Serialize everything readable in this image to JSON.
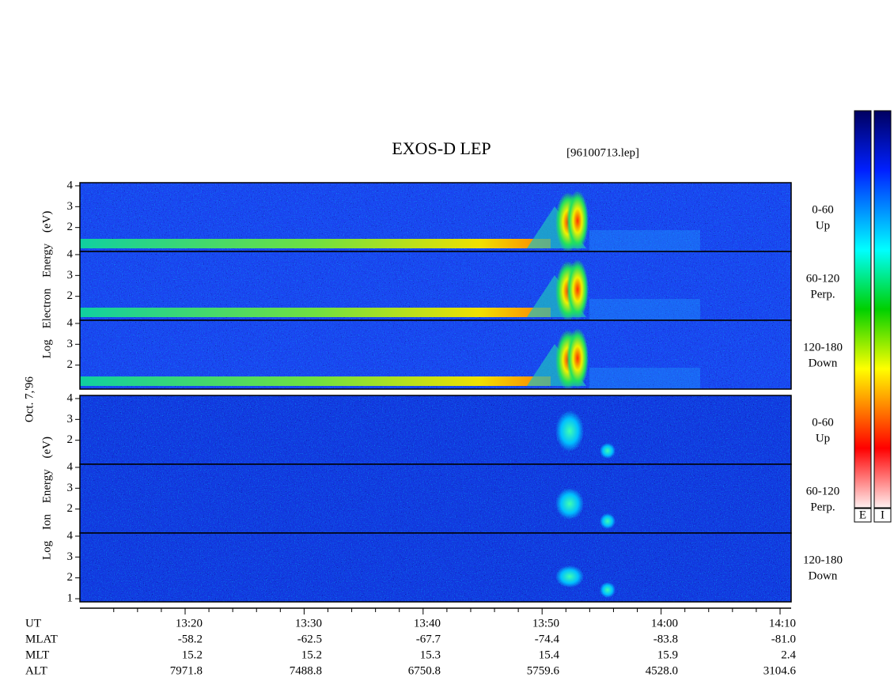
{
  "title": "EXOS-D LEP",
  "file": "[96100713.lep]",
  "date": "Oct. 7,'96",
  "electron_axis_label": "Log Electron Energy (eV)",
  "ion_axis_label": "Log Ion Energy (eV)",
  "panels": [
    {
      "species": "electron",
      "pitch": "0-60",
      "direction": "Up",
      "yticks": [
        4,
        3,
        2
      ]
    },
    {
      "species": "electron",
      "pitch": "60-120",
      "direction": "Perp.",
      "yticks": [
        4,
        3,
        2
      ]
    },
    {
      "species": "electron",
      "pitch": "120-180",
      "direction": "Down",
      "yticks": [
        4,
        3,
        2
      ]
    },
    {
      "species": "ion",
      "pitch": "0-60",
      "direction": "Up",
      "yticks": [
        4,
        3,
        2
      ]
    },
    {
      "species": "ion",
      "pitch": "60-120",
      "direction": "Perp.",
      "yticks": [
        4,
        3,
        2
      ]
    },
    {
      "species": "ion",
      "pitch": "120-180",
      "direction": "Down",
      "yticks": [
        4,
        3,
        2,
        1
      ]
    }
  ],
  "orbit_table": {
    "row_labels": [
      "UT",
      "MLAT",
      "MLT",
      "ALT"
    ],
    "columns": [
      [
        "13:20",
        "-58.2",
        "15.2",
        "7971.8"
      ],
      [
        "13:30",
        "-62.5",
        "15.2",
        "7488.8"
      ],
      [
        "13:40",
        "-67.7",
        "15.3",
        "6750.8"
      ],
      [
        "13:50",
        "-74.4",
        "15.4",
        "5759.6"
      ],
      [
        "14:00",
        "-83.8",
        "15.9",
        "4528.0"
      ],
      [
        "14:10",
        "-81.0",
        "2.4",
        "3104.6"
      ]
    ]
  },
  "colorbar_labels": [
    "E",
    "I"
  ]
}
